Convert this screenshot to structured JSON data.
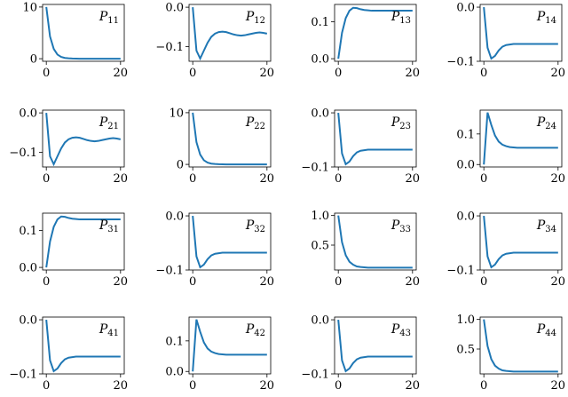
{
  "chart_data": [
    {
      "type": "line",
      "label": {
        "main": "P",
        "sub": "11"
      },
      "x": [
        0,
        1,
        2,
        3,
        4,
        5,
        6,
        7,
        8,
        9,
        10,
        11,
        12,
        13,
        14,
        15,
        16,
        17,
        18,
        19,
        20
      ],
      "values": [
        10,
        4.3,
        1.9,
        0.8,
        0.35,
        0.15,
        0.07,
        0.03,
        0.01,
        0,
        0,
        0,
        0,
        0,
        0,
        0,
        0,
        0,
        0,
        0,
        0
      ],
      "color": "#1f77b4",
      "xlim": [
        -1,
        21
      ],
      "ylim": [
        -0.5,
        10.5
      ],
      "xticks": [
        0,
        20
      ],
      "yticks": [
        0,
        10
      ]
    },
    {
      "type": "line",
      "label": {
        "main": "P",
        "sub": "12"
      },
      "x": [
        0,
        1,
        2,
        3,
        4,
        5,
        6,
        7,
        8,
        9,
        10,
        11,
        12,
        13,
        14,
        15,
        16,
        17,
        18,
        19,
        20
      ],
      "values": [
        0,
        -0.11,
        -0.13,
        -0.11,
        -0.09,
        -0.075,
        -0.067,
        -0.063,
        -0.062,
        -0.063,
        -0.066,
        -0.069,
        -0.071,
        -0.072,
        -0.071,
        -0.069,
        -0.067,
        -0.065,
        -0.064,
        -0.065,
        -0.067
      ],
      "color": "#1f77b4",
      "xlim": [
        -1,
        21
      ],
      "ylim": [
        -0.137,
        0.007
      ],
      "xticks": [
        0,
        20
      ],
      "yticks": [
        {
          "value": -0.1,
          "label": "−0.1"
        },
        {
          "value": 0,
          "label": "0.0"
        }
      ]
    },
    {
      "type": "line",
      "label": {
        "main": "P",
        "sub": "13"
      },
      "x": [
        0,
        1,
        2,
        3,
        4,
        5,
        6,
        7,
        8,
        9,
        10,
        11,
        12,
        13,
        14,
        15,
        16,
        17,
        18,
        19,
        20
      ],
      "values": [
        0,
        0.07,
        0.11,
        0.13,
        0.138,
        0.137,
        0.134,
        0.132,
        0.131,
        0.13,
        0.13,
        0.13,
        0.13,
        0.13,
        0.13,
        0.13,
        0.13,
        0.13,
        0.13,
        0.13,
        0.13
      ],
      "color": "#1f77b4",
      "xlim": [
        -1,
        21
      ],
      "ylim": [
        -0.007,
        0.147
      ],
      "xticks": [
        0,
        20
      ],
      "yticks": [
        {
          "value": 0,
          "label": "0.0"
        },
        {
          "value": 0.1,
          "label": "0.1"
        }
      ]
    },
    {
      "type": "line",
      "label": {
        "main": "P",
        "sub": "14"
      },
      "x": [
        0,
        1,
        2,
        3,
        4,
        5,
        6,
        7,
        8,
        9,
        10,
        11,
        12,
        13,
        14,
        15,
        16,
        17,
        18,
        19,
        20
      ],
      "values": [
        0,
        -0.075,
        -0.095,
        -0.09,
        -0.08,
        -0.073,
        -0.07,
        -0.069,
        -0.068,
        -0.068,
        -0.068,
        -0.068,
        -0.068,
        -0.068,
        -0.068,
        -0.068,
        -0.068,
        -0.068,
        -0.068,
        -0.068,
        -0.068
      ],
      "color": "#1f77b4",
      "xlim": [
        -1,
        21
      ],
      "ylim": [
        -0.1,
        0.005
      ],
      "xticks": [
        0,
        20
      ],
      "yticks": [
        {
          "value": -0.1,
          "label": "−0.1"
        },
        {
          "value": 0,
          "label": "0.0"
        }
      ]
    },
    {
      "type": "line",
      "label": {
        "main": "P",
        "sub": "21"
      },
      "x": [
        0,
        1,
        2,
        3,
        4,
        5,
        6,
        7,
        8,
        9,
        10,
        11,
        12,
        13,
        14,
        15,
        16,
        17,
        18,
        19,
        20
      ],
      "values": [
        0,
        -0.11,
        -0.13,
        -0.11,
        -0.09,
        -0.075,
        -0.067,
        -0.063,
        -0.062,
        -0.063,
        -0.066,
        -0.069,
        -0.071,
        -0.072,
        -0.071,
        -0.069,
        -0.067,
        -0.065,
        -0.064,
        -0.065,
        -0.067
      ],
      "color": "#1f77b4",
      "xlim": [
        -1,
        21
      ],
      "ylim": [
        -0.137,
        0.007
      ],
      "xticks": [
        0,
        20
      ],
      "yticks": [
        {
          "value": -0.1,
          "label": "−0.1"
        },
        {
          "value": 0,
          "label": "0.0"
        }
      ]
    },
    {
      "type": "line",
      "label": {
        "main": "P",
        "sub": "22"
      },
      "x": [
        0,
        1,
        2,
        3,
        4,
        5,
        6,
        7,
        8,
        9,
        10,
        11,
        12,
        13,
        14,
        15,
        16,
        17,
        18,
        19,
        20
      ],
      "values": [
        10,
        4.3,
        1.9,
        0.8,
        0.35,
        0.15,
        0.07,
        0.03,
        0.01,
        0,
        0,
        0,
        0,
        0,
        0,
        0,
        0,
        0,
        0,
        0,
        0
      ],
      "color": "#1f77b4",
      "xlim": [
        -1,
        21
      ],
      "ylim": [
        -0.5,
        10.5
      ],
      "xticks": [
        0,
        20
      ],
      "yticks": [
        0,
        10
      ]
    },
    {
      "type": "line",
      "label": {
        "main": "P",
        "sub": "23"
      },
      "x": [
        0,
        1,
        2,
        3,
        4,
        5,
        6,
        7,
        8,
        9,
        10,
        11,
        12,
        13,
        14,
        15,
        16,
        17,
        18,
        19,
        20
      ],
      "values": [
        0,
        -0.075,
        -0.095,
        -0.09,
        -0.08,
        -0.073,
        -0.07,
        -0.069,
        -0.068,
        -0.068,
        -0.068,
        -0.068,
        -0.068,
        -0.068,
        -0.068,
        -0.068,
        -0.068,
        -0.068,
        -0.068,
        -0.068,
        -0.068
      ],
      "color": "#1f77b4",
      "xlim": [
        -1,
        21
      ],
      "ylim": [
        -0.1,
        0.005
      ],
      "xticks": [
        0,
        20
      ],
      "yticks": [
        {
          "value": -0.1,
          "label": "−0.1"
        },
        {
          "value": 0,
          "label": "0.0"
        }
      ]
    },
    {
      "type": "line",
      "label": {
        "main": "P",
        "sub": "24"
      },
      "x": [
        0,
        1,
        2,
        3,
        4,
        5,
        6,
        7,
        8,
        9,
        10,
        11,
        12,
        13,
        14,
        15,
        16,
        17,
        18,
        19,
        20
      ],
      "values": [
        0,
        0.17,
        0.13,
        0.095,
        0.075,
        0.065,
        0.06,
        0.057,
        0.056,
        0.055,
        0.055,
        0.055,
        0.055,
        0.055,
        0.055,
        0.055,
        0.055,
        0.055,
        0.055,
        0.055,
        0.055
      ],
      "color": "#1f77b4",
      "xlim": [
        -1,
        21
      ],
      "ylim": [
        -0.008,
        0.178
      ],
      "xticks": [
        0,
        20
      ],
      "yticks": [
        {
          "value": 0,
          "label": "0.0"
        },
        {
          "value": 0.1,
          "label": "0.1"
        }
      ]
    },
    {
      "type": "line",
      "label": {
        "main": "P",
        "sub": "31"
      },
      "x": [
        0,
        1,
        2,
        3,
        4,
        5,
        6,
        7,
        8,
        9,
        10,
        11,
        12,
        13,
        14,
        15,
        16,
        17,
        18,
        19,
        20
      ],
      "values": [
        0,
        0.07,
        0.11,
        0.13,
        0.138,
        0.137,
        0.134,
        0.132,
        0.131,
        0.13,
        0.13,
        0.13,
        0.13,
        0.13,
        0.13,
        0.13,
        0.13,
        0.13,
        0.13,
        0.13,
        0.13
      ],
      "color": "#1f77b4",
      "xlim": [
        -1,
        21
      ],
      "ylim": [
        -0.007,
        0.147
      ],
      "xticks": [
        0,
        20
      ],
      "yticks": [
        {
          "value": 0,
          "label": "0.0"
        },
        {
          "value": 0.1,
          "label": "0.1"
        }
      ]
    },
    {
      "type": "line",
      "label": {
        "main": "P",
        "sub": "32"
      },
      "x": [
        0,
        1,
        2,
        3,
        4,
        5,
        6,
        7,
        8,
        9,
        10,
        11,
        12,
        13,
        14,
        15,
        16,
        17,
        18,
        19,
        20
      ],
      "values": [
        0,
        -0.075,
        -0.095,
        -0.09,
        -0.08,
        -0.073,
        -0.07,
        -0.069,
        -0.068,
        -0.068,
        -0.068,
        -0.068,
        -0.068,
        -0.068,
        -0.068,
        -0.068,
        -0.068,
        -0.068,
        -0.068,
        -0.068,
        -0.068
      ],
      "color": "#1f77b4",
      "xlim": [
        -1,
        21
      ],
      "ylim": [
        -0.1,
        0.005
      ],
      "xticks": [
        0,
        20
      ],
      "yticks": [
        {
          "value": -0.1,
          "label": "−0.1"
        },
        {
          "value": 0,
          "label": "0.0"
        }
      ]
    },
    {
      "type": "line",
      "label": {
        "main": "P",
        "sub": "33"
      },
      "x": [
        0,
        1,
        2,
        3,
        4,
        5,
        6,
        7,
        8,
        9,
        10,
        11,
        12,
        13,
        14,
        15,
        16,
        17,
        18,
        19,
        20
      ],
      "values": [
        1,
        0.55,
        0.33,
        0.22,
        0.17,
        0.14,
        0.13,
        0.125,
        0.12,
        0.12,
        0.12,
        0.12,
        0.12,
        0.12,
        0.12,
        0.12,
        0.12,
        0.12,
        0.12,
        0.12,
        0.12
      ],
      "color": "#1f77b4",
      "xlim": [
        -1,
        21
      ],
      "ylim": [
        0.08,
        1.04
      ],
      "xticks": [
        0,
        20
      ],
      "yticks": [
        {
          "value": 0.5,
          "label": "0.5"
        },
        {
          "value": 1,
          "label": "1.0"
        }
      ]
    },
    {
      "type": "line",
      "label": {
        "main": "P",
        "sub": "34"
      },
      "x": [
        0,
        1,
        2,
        3,
        4,
        5,
        6,
        7,
        8,
        9,
        10,
        11,
        12,
        13,
        14,
        15,
        16,
        17,
        18,
        19,
        20
      ],
      "values": [
        0,
        -0.075,
        -0.095,
        -0.09,
        -0.08,
        -0.073,
        -0.07,
        -0.069,
        -0.068,
        -0.068,
        -0.068,
        -0.068,
        -0.068,
        -0.068,
        -0.068,
        -0.068,
        -0.068,
        -0.068,
        -0.068,
        -0.068,
        -0.068
      ],
      "color": "#1f77b4",
      "xlim": [
        -1,
        21
      ],
      "ylim": [
        -0.1,
        0.005
      ],
      "xticks": [
        0,
        20
      ],
      "yticks": [
        {
          "value": -0.1,
          "label": "−0.1"
        },
        {
          "value": 0,
          "label": "0.0"
        }
      ]
    },
    {
      "type": "line",
      "label": {
        "main": "P",
        "sub": "41"
      },
      "x": [
        0,
        1,
        2,
        3,
        4,
        5,
        6,
        7,
        8,
        9,
        10,
        11,
        12,
        13,
        14,
        15,
        16,
        17,
        18,
        19,
        20
      ],
      "values": [
        0,
        -0.075,
        -0.095,
        -0.09,
        -0.08,
        -0.073,
        -0.07,
        -0.069,
        -0.068,
        -0.068,
        -0.068,
        -0.068,
        -0.068,
        -0.068,
        -0.068,
        -0.068,
        -0.068,
        -0.068,
        -0.068,
        -0.068,
        -0.068
      ],
      "color": "#1f77b4",
      "xlim": [
        -1,
        21
      ],
      "ylim": [
        -0.1,
        0.005
      ],
      "xticks": [
        0,
        20
      ],
      "yticks": [
        {
          "value": -0.1,
          "label": "−0.1"
        },
        {
          "value": 0,
          "label": "0.0"
        }
      ]
    },
    {
      "type": "line",
      "label": {
        "main": "P",
        "sub": "42"
      },
      "x": [
        0,
        1,
        2,
        3,
        4,
        5,
        6,
        7,
        8,
        9,
        10,
        11,
        12,
        13,
        14,
        15,
        16,
        17,
        18,
        19,
        20
      ],
      "values": [
        0,
        0.17,
        0.13,
        0.095,
        0.075,
        0.065,
        0.06,
        0.057,
        0.056,
        0.055,
        0.055,
        0.055,
        0.055,
        0.055,
        0.055,
        0.055,
        0.055,
        0.055,
        0.055,
        0.055,
        0.055
      ],
      "color": "#1f77b4",
      "xlim": [
        -1,
        21
      ],
      "ylim": [
        -0.008,
        0.178
      ],
      "xticks": [
        0,
        20
      ],
      "yticks": [
        {
          "value": 0,
          "label": "0.0"
        },
        {
          "value": 0.1,
          "label": "0.1"
        }
      ]
    },
    {
      "type": "line",
      "label": {
        "main": "P",
        "sub": "43"
      },
      "x": [
        0,
        1,
        2,
        3,
        4,
        5,
        6,
        7,
        8,
        9,
        10,
        11,
        12,
        13,
        14,
        15,
        16,
        17,
        18,
        19,
        20
      ],
      "values": [
        0,
        -0.075,
        -0.095,
        -0.09,
        -0.08,
        -0.073,
        -0.07,
        -0.069,
        -0.068,
        -0.068,
        -0.068,
        -0.068,
        -0.068,
        -0.068,
        -0.068,
        -0.068,
        -0.068,
        -0.068,
        -0.068,
        -0.068,
        -0.068
      ],
      "color": "#1f77b4",
      "xlim": [
        -1,
        21
      ],
      "ylim": [
        -0.1,
        0.005
      ],
      "xticks": [
        0,
        20
      ],
      "yticks": [
        {
          "value": -0.1,
          "label": "−0.1"
        },
        {
          "value": 0,
          "label": "0.0"
        }
      ]
    },
    {
      "type": "line",
      "label": {
        "main": "P",
        "sub": "44"
      },
      "x": [
        0,
        1,
        2,
        3,
        4,
        5,
        6,
        7,
        8,
        9,
        10,
        11,
        12,
        13,
        14,
        15,
        16,
        17,
        18,
        19,
        20
      ],
      "values": [
        1,
        0.55,
        0.33,
        0.22,
        0.17,
        0.14,
        0.13,
        0.125,
        0.12,
        0.12,
        0.12,
        0.12,
        0.12,
        0.12,
        0.12,
        0.12,
        0.12,
        0.12,
        0.12,
        0.12,
        0.12
      ],
      "color": "#1f77b4",
      "xlim": [
        -1,
        21
      ],
      "ylim": [
        0.08,
        1.04
      ],
      "xticks": [
        0,
        20
      ],
      "yticks": [
        {
          "value": 0.5,
          "label": "0.5"
        },
        {
          "value": 1,
          "label": "1.0"
        }
      ]
    }
  ]
}
